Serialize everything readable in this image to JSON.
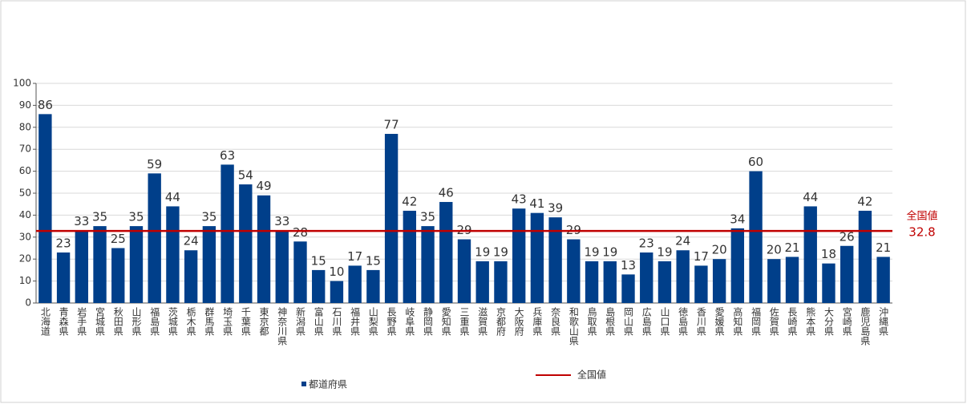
{
  "chart_data": {
    "type": "bar",
    "categories": [
      "北海道",
      "青森県",
      "岩手県",
      "宮城県",
      "秋田県",
      "山形県",
      "福島県",
      "茨城県",
      "栃木県",
      "群馬県",
      "埼玉県",
      "千葉県",
      "東京都",
      "神奈川県",
      "新潟県",
      "富山県",
      "石川県",
      "福井県",
      "山梨県",
      "長野県",
      "岐阜県",
      "静岡県",
      "愛知県",
      "三重県",
      "滋賀県",
      "京都府",
      "大阪府",
      "兵庫県",
      "奈良県",
      "和歌山県",
      "鳥取県",
      "島根県",
      "岡山県",
      "広島県",
      "山口県",
      "徳島県",
      "香川県",
      "愛媛県",
      "高知県",
      "福岡県",
      "佐賀県",
      "長崎県",
      "熊本県",
      "大分県",
      "宮崎県",
      "鹿児島県",
      "沖縄県"
    ],
    "series": [
      {
        "name": "都道府県",
        "color": "#003f8a",
        "values": [
          86,
          23,
          33,
          35,
          25,
          35,
          59,
          44,
          24,
          35,
          63,
          54,
          49,
          33,
          28,
          15,
          10,
          17,
          15,
          77,
          42,
          35,
          46,
          29,
          19,
          19,
          43,
          41,
          39,
          29,
          19,
          19,
          13,
          23,
          19,
          24,
          17,
          20,
          34,
          60,
          20,
          21,
          44,
          18,
          26,
          42,
          21
        ]
      }
    ],
    "reference_line": {
      "name": "全国値",
      "value": 32.8,
      "color": "#c00000"
    },
    "ylim": [
      0,
      100
    ],
    "yticks": [
      0,
      10,
      20,
      30,
      40,
      50,
      60,
      70,
      80,
      90,
      100
    ],
    "grid": true
  }
}
